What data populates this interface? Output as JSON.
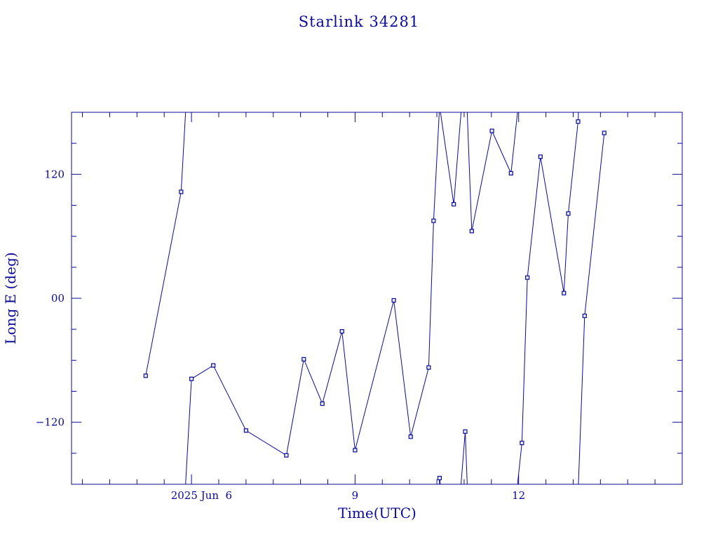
{
  "chart_data": {
    "type": "scatter",
    "title": "Starlink 34281",
    "xlabel": "Time(UTC)",
    "ylabel": "Long E (deg)",
    "x_unit": "UTC day",
    "xlim": [
      3.8,
      15.0
    ],
    "ylim": [
      -180,
      180
    ],
    "xticks": [
      {
        "value": 6,
        "label": "2025 Jun  6"
      },
      {
        "value": 9,
        "label": "9"
      },
      {
        "value": 12,
        "label": "12"
      }
    ],
    "yticks": [
      {
        "value": 120,
        "label": "120"
      },
      {
        "value": 0,
        "label": "00"
      },
      {
        "value": -120,
        "label": "−120"
      }
    ],
    "grid": false,
    "x": [
      5.16,
      5.81,
      6.0,
      6.4,
      7.0,
      7.74,
      8.06,
      8.4,
      8.76,
      9.0,
      9.71,
      10.02,
      10.35,
      10.44,
      10.55,
      10.81,
      11.02,
      11.14,
      11.51,
      11.86,
      12.06,
      12.16,
      12.4,
      12.83,
      12.91,
      13.09,
      13.21,
      13.57
    ],
    "values": [
      -75,
      103,
      -78,
      -65,
      -128,
      -152,
      -59,
      -102,
      -32,
      -147,
      -2,
      -134,
      -67,
      75,
      -174,
      91,
      -129,
      65,
      162,
      121,
      -140,
      20,
      137,
      5,
      82,
      171,
      -17,
      160
    ],
    "connect_break": "wrap at ±180",
    "colors": {
      "ink": "#0a0a96",
      "marker_fill": "#e8ecff",
      "background": "#ffffff"
    }
  }
}
